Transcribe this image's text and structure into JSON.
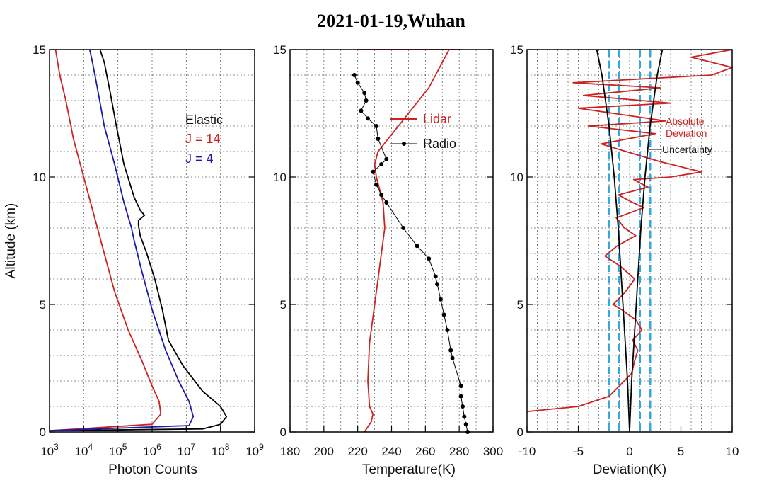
{
  "title": "2021-01-19,Wuhan",
  "chart_data": [
    {
      "type": "line",
      "panel": "photon-counts",
      "xlabel": "Photon Counts",
      "ylabel": "Altitude (km)",
      "xscale": "log",
      "xlim": [
        1000,
        1000000000
      ],
      "ylim": [
        0,
        15
      ],
      "x_tick_bases": [
        "10",
        "10",
        "10",
        "10",
        "10",
        "10",
        "10"
      ],
      "x_tick_exps": [
        "3",
        "4",
        "5",
        "6",
        "7",
        "8",
        "9"
      ],
      "y_ticks": [
        "0",
        "5",
        "10",
        "15"
      ],
      "grid": true,
      "legend": {
        "position": "upper-right",
        "entries": [
          "Elastic",
          "J = 14",
          "J = 4"
        ]
      },
      "series": [
        {
          "name": "Elastic",
          "color": "#000000",
          "x": [
            1000,
            30000000,
            100000000,
            150000000,
            100000000,
            30000000,
            8000000,
            3000000,
            2000000,
            1200000,
            700000,
            450000,
            400000,
            400000,
            600000,
            450000,
            300000,
            150000,
            90000,
            60000,
            40000,
            30000
          ],
          "y": [
            0.05,
            0.12,
            0.3,
            0.6,
            1.0,
            1.6,
            2.6,
            3.6,
            4.8,
            6.0,
            7.0,
            7.7,
            8.1,
            8.3,
            8.5,
            8.7,
            9.2,
            10.5,
            12.0,
            13.3,
            14.5,
            15.0
          ]
        },
        {
          "name": "J = 14",
          "color": "#cc2222",
          "x": [
            1000,
            1000000,
            1800000,
            1600000,
            1000000,
            500000,
            200000,
            80000,
            40000,
            20000,
            10000,
            5000,
            3000,
            2000,
            1500
          ],
          "y": [
            0.05,
            0.3,
            0.7,
            1.2,
            1.8,
            2.8,
            4.0,
            5.5,
            7.0,
            8.5,
            10.0,
            11.5,
            13.0,
            14.0,
            15.0
          ]
        },
        {
          "name": "J = 4",
          "color": "#1a1aaa",
          "x": [
            1000,
            12000000,
            16000000,
            12000000,
            6000000,
            2500000,
            1000000,
            500000,
            300000,
            250000,
            150000,
            80000,
            40000,
            25000,
            18000,
            15000
          ],
          "y": [
            0.05,
            0.25,
            0.6,
            1.2,
            2.0,
            3.2,
            4.8,
            6.3,
            7.5,
            8.0,
            9.0,
            10.5,
            12.0,
            13.5,
            14.5,
            15.0
          ]
        }
      ]
    },
    {
      "type": "line",
      "panel": "temperature",
      "xlabel": "Temperature(K)",
      "xlim": [
        180,
        300
      ],
      "ylim": [
        0,
        15
      ],
      "x_ticks": [
        "180",
        "200",
        "220",
        "240",
        "260",
        "280",
        "300"
      ],
      "y_ticks": [
        "0",
        "5",
        "10",
        "15"
      ],
      "grid": true,
      "legend": {
        "position": "upper-right",
        "entries": [
          "Lidar",
          "Radio"
        ]
      },
      "series": [
        {
          "name": "Lidar",
          "color": "#cc2222",
          "x": [
            224,
            226,
            228,
            229,
            227,
            226,
            227,
            230,
            232,
            234,
            236,
            235,
            231,
            230,
            232,
            238,
            244,
            250,
            256,
            262,
            266,
            270,
            274,
            278,
            281,
            278,
            268,
            255,
            238,
            226,
            220
          ],
          "y": [
            0.0,
            0.2,
            0.4,
            0.7,
            1.0,
            2.0,
            3.5,
            5.0,
            6.0,
            7.0,
            8.0,
            9.0,
            10.0,
            10.5,
            11.0,
            11.5,
            12.0,
            12.5,
            13.0,
            13.5,
            14.0,
            14.5,
            15.0,
            15.0,
            15.0,
            15.0,
            15.0,
            15.0,
            15.0,
            15.0,
            15.0
          ]
        },
        {
          "name": "Radio",
          "color": "#000000",
          "x": [
            285,
            284,
            283,
            282,
            281,
            281,
            276,
            275,
            273,
            271,
            269,
            267,
            266,
            262,
            255,
            247,
            237,
            234,
            231,
            229,
            234,
            237,
            232,
            231,
            226,
            222,
            225,
            224,
            220,
            218
          ],
          "y": [
            0.0,
            0.3,
            0.6,
            1.0,
            1.4,
            1.8,
            2.9,
            3.2,
            4.0,
            4.6,
            5.2,
            5.8,
            6.1,
            6.8,
            7.3,
            8.0,
            9.0,
            9.3,
            9.7,
            10.2,
            10.5,
            10.7,
            11.5,
            12.0,
            12.3,
            12.6,
            13.0,
            13.3,
            13.7,
            14.0
          ]
        }
      ]
    },
    {
      "type": "line",
      "panel": "deviation",
      "xlabel": "Deviation(K)",
      "xlim": [
        -10,
        10
      ],
      "ylim": [
        0,
        15
      ],
      "x_ticks": [
        "-10",
        "-5",
        "0",
        "5",
        "10"
      ],
      "y_ticks": [
        "0",
        "5",
        "10",
        "15"
      ],
      "grid": true,
      "annotations": [
        "Absolute",
        "Deviation",
        "Uncertainty"
      ],
      "reference_lines": {
        "color": "#33aadd",
        "style": "dashed",
        "x": [
          -2,
          -1,
          1,
          2
        ]
      },
      "series": [
        {
          "name": "Absolute Deviation",
          "color": "#cc2222",
          "x": [
            -10,
            -5,
            -2,
            -1,
            0.2,
            0.5,
            0.8,
            0.3,
            1.2,
            0.6,
            -0.8,
            -1.6,
            -0.4,
            0.5,
            -0.9,
            -2.4,
            -1.2,
            0.6,
            -0.5,
            -1.3,
            1.4,
            0.3,
            -1.1,
            1.8,
            0.4,
            4.0,
            7.0,
            3.0,
            0.5,
            -2.8,
            2.5,
            -4.0,
            3.5,
            -5.0,
            4.0,
            -4.5,
            3.0,
            -5.5,
            8.0,
            10.0,
            6.0,
            10.0
          ],
          "y": [
            0.8,
            1.0,
            1.4,
            1.8,
            2.3,
            2.8,
            3.2,
            3.6,
            4.0,
            4.4,
            4.8,
            5.0,
            5.5,
            6.0,
            6.5,
            6.9,
            7.3,
            7.7,
            8.0,
            8.4,
            8.8,
            9.0,
            9.3,
            9.6,
            9.9,
            10.0,
            10.2,
            10.6,
            10.9,
            11.3,
            11.7,
            12.0,
            12.2,
            12.7,
            12.9,
            13.2,
            13.5,
            13.7,
            14.0,
            14.3,
            14.7,
            15.0
          ]
        },
        {
          "name": "Uncertainty",
          "color": "#000000",
          "x_left": [
            0,
            -0.2,
            -0.5,
            -0.8,
            -1.1,
            -1.5,
            -2.0,
            -2.7,
            -3.2
          ],
          "x_right": [
            0,
            0.2,
            0.5,
            0.8,
            1.1,
            1.5,
            2.0,
            2.7,
            3.2
          ],
          "y": [
            0.0,
            2.0,
            4.0,
            6.0,
            8.0,
            10.0,
            12.0,
            14.0,
            15.0
          ]
        }
      ]
    }
  ]
}
